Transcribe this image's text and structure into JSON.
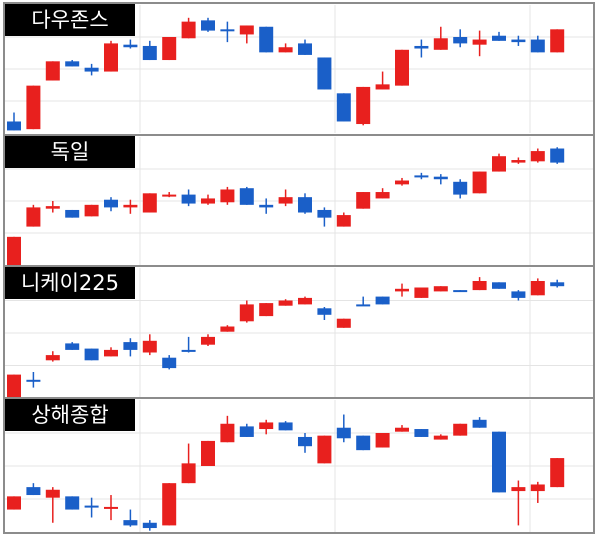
{
  "chart_data": [
    {
      "type": "candlestick",
      "title": "다우존스",
      "ylim": [
        0,
        100
      ],
      "up_color": "#e8201e",
      "down_color": "#1a5fc8",
      "open": [
        9,
        3,
        41,
        56,
        51,
        48,
        69,
        68,
        57,
        74,
        88,
        81,
        77,
        83,
        63,
        70,
        59,
        31,
        7,
        34,
        37,
        68,
        65,
        75,
        69,
        76,
        73,
        73,
        63
      ],
      "close": [
        2,
        37,
        56,
        52,
        48,
        70,
        67,
        57,
        75,
        87,
        80,
        80,
        84,
        63,
        67,
        61,
        34,
        9,
        36,
        38,
        65,
        66,
        74,
        70,
        73,
        72,
        71,
        63,
        81
      ],
      "high": [
        16,
        37,
        56,
        57,
        54,
        72,
        73,
        72,
        75,
        90,
        90,
        87,
        84,
        83,
        70,
        73,
        59,
        31,
        36,
        48,
        65,
        73,
        83,
        81,
        80,
        79,
        76,
        76,
        81
      ],
      "low": [
        2,
        3,
        41,
        52,
        45,
        48,
        66,
        57,
        57,
        74,
        79,
        71,
        70,
        63,
        63,
        61,
        34,
        9,
        6,
        34,
        37,
        59,
        65,
        67,
        60,
        72,
        68,
        63,
        63
      ]
    },
    {
      "type": "candlestick",
      "title": "독일",
      "ylim": [
        0,
        100
      ],
      "up_color": "#e8201e",
      "down_color": "#1a5fc8",
      "open": [
        0,
        30,
        44,
        43,
        38,
        51,
        45,
        41,
        54,
        55,
        48,
        49,
        60,
        47,
        48,
        53,
        43,
        30,
        44,
        52,
        63,
        70,
        69,
        65,
        56,
        73,
        80,
        81,
        91
      ],
      "close": [
        22,
        45,
        46,
        37,
        47,
        45,
        47,
        56,
        55,
        48,
        52,
        59,
        47,
        45,
        53,
        41,
        37,
        39,
        57,
        57,
        66,
        69,
        67,
        55,
        73,
        85,
        82,
        89,
        80
      ],
      "high": [
        22,
        47,
        50,
        43,
        47,
        53,
        51,
        56,
        57,
        59,
        55,
        61,
        61,
        52,
        59,
        56,
        45,
        41,
        57,
        60,
        68,
        72,
        71,
        67,
        73,
        87,
        84,
        91,
        92
      ],
      "low": [
        0,
        30,
        41,
        37,
        38,
        42,
        40,
        41,
        53,
        46,
        47,
        47,
        47,
        40,
        46,
        40,
        30,
        30,
        44,
        52,
        62,
        67,
        63,
        52,
        56,
        73,
        79,
        80,
        79
      ]
    },
    {
      "type": "candlestick",
      "title": "니케이225",
      "ylim": [
        0,
        100
      ],
      "up_color": "#e8201e",
      "down_color": "#1a5fc8",
      "open": [
        0,
        14,
        29,
        42,
        38,
        32,
        43,
        35,
        31,
        37,
        41,
        51,
        59,
        63,
        71,
        72,
        69,
        54,
        72,
        78,
        82,
        77,
        82,
        83,
        83,
        89,
        82,
        79,
        89
      ],
      "close": [
        18,
        13,
        33,
        37,
        29,
        37,
        37,
        44,
        23,
        36,
        47,
        55,
        72,
        73,
        75,
        77,
        64,
        61,
        71,
        72,
        84,
        85,
        86,
        82,
        90,
        84,
        77,
        90,
        86
      ],
      "high": [
        18,
        20,
        36,
        43,
        38,
        39,
        46,
        49,
        33,
        47,
        49,
        56,
        75,
        73,
        76,
        78,
        70,
        61,
        78,
        78,
        88,
        85,
        86,
        83,
        93,
        89,
        83,
        92,
        91
      ],
      "low": [
        0,
        8,
        28,
        37,
        29,
        32,
        32,
        33,
        22,
        35,
        40,
        51,
        58,
        63,
        71,
        72,
        60,
        54,
        71,
        72,
        78,
        77,
        82,
        82,
        83,
        84,
        75,
        79,
        85
      ]
    },
    {
      "type": "candlestick",
      "title": "상해종합",
      "ylim": [
        0,
        100
      ],
      "up_color": "#e8201e",
      "down_color": "#1a5fc8",
      "open": [
        17,
        34,
        26,
        27,
        20,
        18,
        9,
        7,
        5,
        37,
        50,
        68,
        80,
        78,
        83,
        72,
        52,
        79,
        73,
        64,
        76,
        78,
        70,
        73,
        85,
        76,
        31,
        31,
        34
      ],
      "close": [
        27,
        28,
        32,
        17,
        19,
        19,
        5,
        3,
        37,
        52,
        69,
        82,
        72,
        83,
        77,
        65,
        73,
        71,
        62,
        75,
        79,
        72,
        73,
        82,
        79,
        30,
        34,
        36,
        56
      ],
      "high": [
        27,
        37,
        34,
        27,
        26,
        28,
        17,
        9,
        37,
        67,
        69,
        88,
        82,
        85,
        84,
        75,
        73,
        89,
        73,
        75,
        81,
        78,
        74,
        82,
        87,
        76,
        39,
        38,
        56
      ],
      "low": [
        17,
        28,
        7,
        17,
        11,
        9,
        4,
        1,
        5,
        37,
        50,
        68,
        72,
        74,
        77,
        60,
        52,
        68,
        62,
        64,
        76,
        72,
        70,
        73,
        79,
        30,
        5,
        22,
        34
      ]
    }
  ]
}
